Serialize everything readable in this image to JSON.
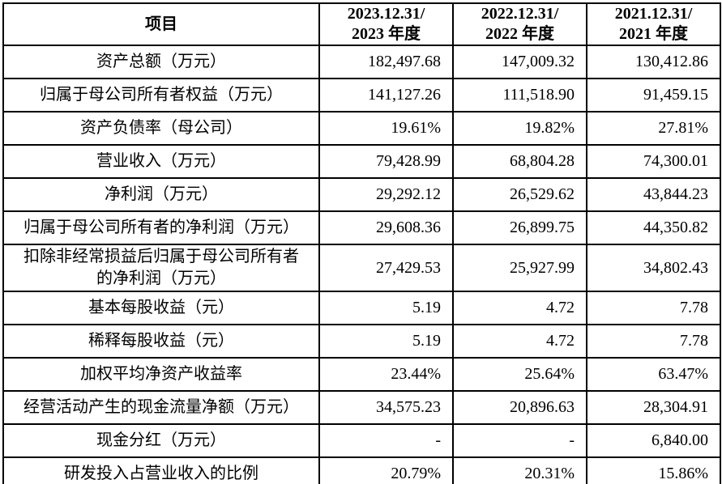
{
  "table": {
    "header": {
      "item_label": "项目",
      "columns": [
        "2023.12.31/\n2023 年度",
        "2022.12.31/\n2022 年度",
        "2021.12.31/\n2021 年度"
      ]
    },
    "rows": [
      {
        "label": "资产总额（万元）",
        "values": [
          "182,497.68",
          "147,009.32",
          "130,412.86"
        ]
      },
      {
        "label": "归属于母公司所有者权益（万元）",
        "values": [
          "141,127.26",
          "111,518.90",
          "91,459.15"
        ]
      },
      {
        "label": "资产负债率（母公司）",
        "values": [
          "19.61%",
          "19.82%",
          "27.81%"
        ]
      },
      {
        "label": "营业收入（万元）",
        "values": [
          "79,428.99",
          "68,804.28",
          "74,300.01"
        ]
      },
      {
        "label": "净利润（万元）",
        "values": [
          "29,292.12",
          "26,529.62",
          "43,844.23"
        ]
      },
      {
        "label": "归属于母公司所有者的净利润（万元）",
        "values": [
          "29,608.36",
          "26,899.75",
          "44,350.82"
        ]
      },
      {
        "label": "扣除非经常损益后归属于母公司所有者\n的净利润（万元）",
        "values": [
          "27,429.53",
          "25,927.99",
          "34,802.43"
        ]
      },
      {
        "label": "基本每股收益（元）",
        "values": [
          "5.19",
          "4.72",
          "7.78"
        ]
      },
      {
        "label": "稀释每股收益（元）",
        "values": [
          "5.19",
          "4.72",
          "7.78"
        ]
      },
      {
        "label": "加权平均净资产收益率",
        "values": [
          "23.44%",
          "25.64%",
          "63.47%"
        ]
      },
      {
        "label": "经营活动产生的现金流量净额（万元）",
        "values": [
          "34,575.23",
          "20,896.63",
          "28,304.91"
        ]
      },
      {
        "label": "现金分红（万元）",
        "values": [
          "-",
          "-",
          "6,840.00"
        ]
      },
      {
        "label": "研发投入占营业收入的比例",
        "values": [
          "20.79%",
          "20.31%",
          "15.86%"
        ]
      }
    ],
    "colors": {
      "border": "#000000",
      "text": "#000000",
      "background": "#ffffff"
    }
  }
}
